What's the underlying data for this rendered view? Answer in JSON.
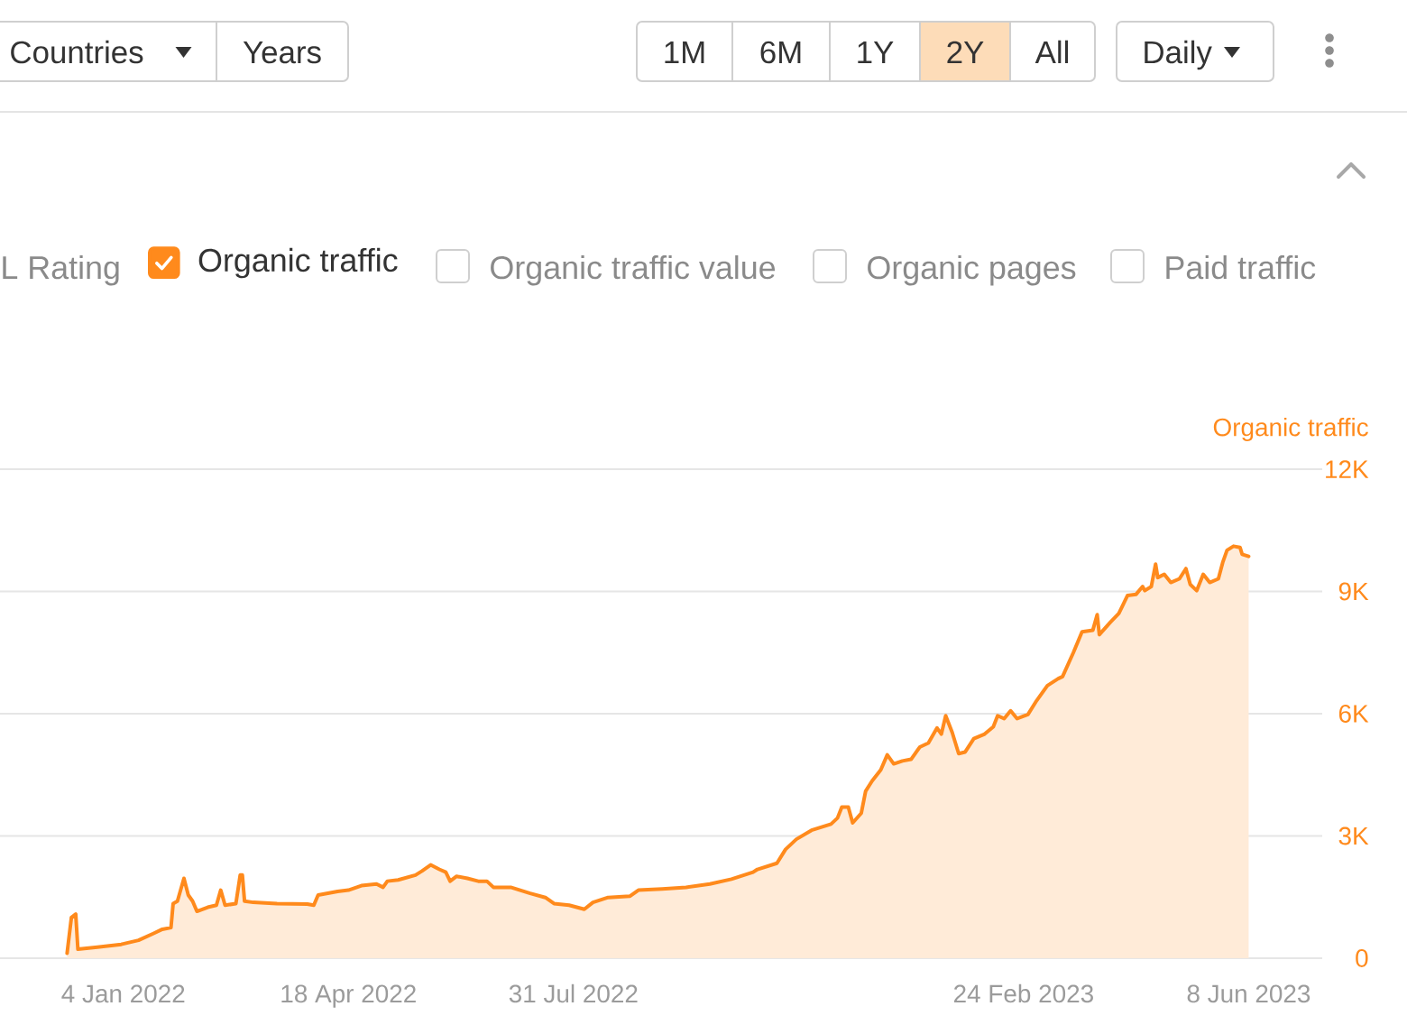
{
  "chart_data": {
    "type": "area",
    "ylabel": "Organic traffic",
    "annotations": [
      "Countries",
      "Years",
      "1M",
      "6M",
      "1Y",
      "2Y",
      "All",
      "Daily",
      "L Rating",
      "Organic traffic value",
      "Organic pages",
      "Paid traffic"
    ],
    "x": [
      "2021-12-09",
      "2021-12-11",
      "2021-12-13",
      "2021-12-14",
      "2021-12-23",
      "2022-01-03",
      "2022-01-11",
      "2022-01-18",
      "2022-01-22",
      "2022-01-26",
      "2022-01-27",
      "2022-01-29",
      "2022-02-01",
      "2022-02-03",
      "2022-02-05",
      "2022-02-07",
      "2022-02-12",
      "2022-02-16",
      "2022-02-18",
      "2022-02-20",
      "2022-02-25",
      "2022-02-27",
      "2022-02-28",
      "2022-03-01",
      "2022-03-05",
      "2022-03-16",
      "2022-03-30",
      "2022-04-02",
      "2022-04-04",
      "2022-04-13",
      "2022-04-18",
      "2022-04-24",
      "2022-05-01",
      "2022-05-04",
      "2022-05-06",
      "2022-05-11",
      "2022-05-19",
      "2022-05-22",
      "2022-05-26",
      "2022-05-30",
      "2022-06-02",
      "2022-06-04",
      "2022-06-07",
      "2022-06-12",
      "2022-06-17",
      "2022-06-21",
      "2022-06-24",
      "2022-07-02",
      "2022-07-11",
      "2022-07-18",
      "2022-07-22",
      "2022-07-29",
      "2022-08-05",
      "2022-08-09",
      "2022-08-16",
      "2022-08-26",
      "2022-08-30",
      "2022-09-10",
      "2022-09-21",
      "2022-10-02",
      "2022-10-12",
      "2022-10-22",
      "2022-10-24",
      "2022-11-02",
      "2022-11-06",
      "2022-11-11",
      "2022-11-18",
      "2022-11-27",
      "2022-11-30",
      "2022-12-02",
      "2022-12-05",
      "2022-12-07",
      "2022-12-11",
      "2022-12-13",
      "2022-12-16",
      "2022-12-20",
      "2022-12-23",
      "2022-12-26",
      "2022-12-30",
      "2023-01-03",
      "2023-01-07",
      "2023-01-11",
      "2023-01-15",
      "2023-01-17",
      "2023-01-19",
      "2023-01-22",
      "2023-01-25",
      "2023-01-28",
      "2023-02-01",
      "2023-02-06",
      "2023-02-10",
      "2023-02-12",
      "2023-02-15",
      "2023-02-18",
      "2023-02-21",
      "2023-02-26",
      "2023-03-02",
      "2023-03-07",
      "2023-03-12",
      "2023-03-14",
      "2023-03-19",
      "2023-03-23",
      "2023-03-28",
      "2023-03-30",
      "2023-03-31",
      "2023-04-05",
      "2023-04-09",
      "2023-04-13",
      "2023-04-17",
      "2023-04-20",
      "2023-04-21",
      "2023-04-24",
      "2023-04-26",
      "2023-04-27",
      "2023-04-30",
      "2023-05-03",
      "2023-05-07",
      "2023-05-10",
      "2023-05-12",
      "2023-05-15",
      "2023-05-18",
      "2023-05-21",
      "2023-05-25",
      "2023-05-27",
      "2023-05-29",
      "2023-06-01",
      "2023-06-04",
      "2023-06-05",
      "2023-06-08"
    ],
    "series": [
      {
        "name": "Organic traffic",
        "color": "#ff8a1c",
        "values": [
          120,
          1000,
          1080,
          220,
          270,
          340,
          440,
          610,
          710,
          750,
          1340,
          1400,
          1960,
          1550,
          1400,
          1150,
          1250,
          1300,
          1670,
          1300,
          1340,
          2040,
          2040,
          1400,
          1370,
          1340,
          1330,
          1300,
          1550,
          1640,
          1670,
          1780,
          1820,
          1740,
          1890,
          1920,
          2040,
          2140,
          2290,
          2180,
          2110,
          1890,
          2010,
          1960,
          1890,
          1890,
          1740,
          1740,
          1590,
          1490,
          1340,
          1300,
          1200,
          1370,
          1490,
          1520,
          1670,
          1700,
          1740,
          1820,
          1940,
          2110,
          2180,
          2330,
          2670,
          2920,
          3140,
          3290,
          3440,
          3710,
          3710,
          3320,
          3560,
          4100,
          4350,
          4620,
          4990,
          4770,
          4840,
          4880,
          5180,
          5280,
          5650,
          5500,
          5950,
          5540,
          5020,
          5060,
          5390,
          5500,
          5680,
          5950,
          5880,
          6070,
          5880,
          5980,
          6320,
          6690,
          6860,
          6910,
          7500,
          8010,
          8050,
          8430,
          7940,
          8240,
          8460,
          8900,
          8930,
          9120,
          9020,
          9120,
          9670,
          9340,
          9420,
          9220,
          9310,
          9560,
          9170,
          9020,
          9420,
          9220,
          9310,
          9710,
          10010,
          10110,
          10080,
          9910,
          9860
        ]
      }
    ],
    "xlim": [
      "2021-11-08",
      "2023-07-12"
    ],
    "xticks": [
      {
        "value": "2022-01-04",
        "label": "4 Jan 2022"
      },
      {
        "value": "2022-04-18",
        "label": "18 Apr 2022"
      },
      {
        "value": "2022-07-31",
        "label": "31 Jul 2022"
      },
      {
        "value": "2023-02-24",
        "label": "24 Feb 2023"
      },
      {
        "value": "2023-06-08",
        "label": "8 Jun 2023"
      }
    ],
    "ylim": [
      0,
      12000
    ],
    "yticks": [
      0,
      {
        "value": 3000,
        "label": "3K"
      },
      {
        "value": 6000,
        "label": "6K"
      },
      {
        "value": 9000,
        "label": "9K"
      },
      {
        "value": 12000,
        "label": "12K"
      }
    ],
    "grid": "y",
    "legend": "top left"
  }
}
